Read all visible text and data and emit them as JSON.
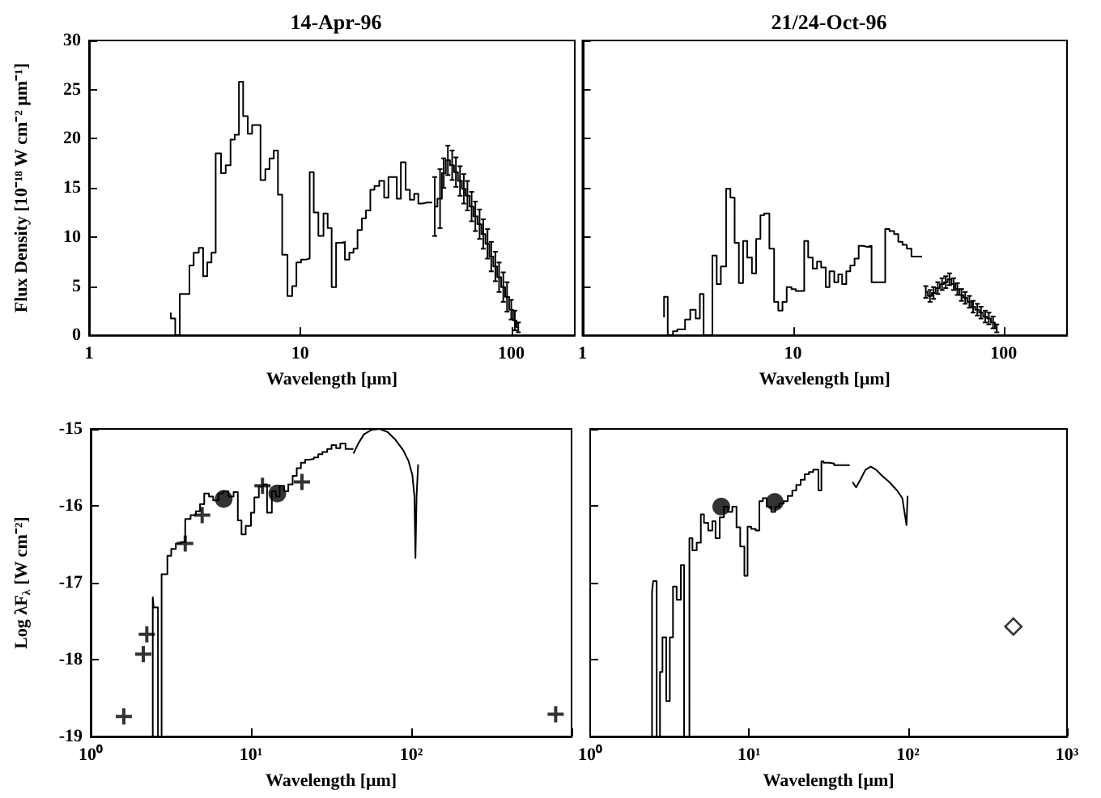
{
  "chart_data": [
    {
      "type": "step",
      "title": "14-Apr-96",
      "xlabel": "Wavelength [μm]",
      "ylabel": "Flux Density [10⁻¹⁸ W cm⁻² μm⁻¹]",
      "log": "x",
      "xlim": [
        1,
        200
      ],
      "xticks": [
        1,
        10,
        100
      ],
      "ylim": [
        0,
        30
      ],
      "yticks": [
        0,
        5,
        10,
        15,
        20,
        25,
        30
      ],
      "series": [
        {
          "color": "#000000",
          "x": [
            2.44,
            2.56,
            2.69,
            2.99,
            3.13,
            3.31,
            3.47,
            3.63,
            3.8,
            3.98,
            4.22,
            4.44,
            4.68,
            4.9,
            5.13,
            5.37,
            5.65,
            5.92,
            6.49,
            6.84,
            7.16,
            7.5,
            7.85,
            8.22,
            8.71,
            9.17,
            9.6,
            10.1,
            10.6,
            11.1,
            11.6,
            12.2,
            12.9,
            13.5,
            14.1,
            14.8,
            15.6,
            16.3,
            17.1,
            17.9,
            18.7,
            19.6,
            20.5,
            21.5,
            22.5,
            23.7,
            25,
            26.2,
            28.7,
            30,
            31.6,
            33.1,
            34.7,
            36.3,
            38,
            39.8,
            42.2
          ],
          "values": [
            2.3,
            1.7,
            0,
            4.2,
            7.1,
            8.4,
            8.9,
            6,
            7.4,
            8.4,
            18.5,
            16.5,
            17.3,
            19.9,
            20.4,
            25.8,
            22.3,
            20.5,
            21.4,
            15.8,
            16.9,
            18,
            18.8,
            14.3,
            8.2,
            4,
            5,
            7.4,
            7.7,
            7.8,
            16.6,
            12.5,
            10.1,
            12.4,
            10.9,
            4.9,
            9.4,
            9.5,
            7.7,
            8.4,
            8.8,
            10.7,
            11.9,
            12.7,
            14.8,
            15.2,
            15.7,
            14,
            16.1,
            13.9,
            17.6,
            14.8,
            13.8,
            14.4,
            13.4,
            13.5,
            13.5
          ]
        },
        {
          "color": "#000000",
          "x": [
            43.4,
            46,
            47.9,
            50.1,
            52.5,
            54.7,
            57.2,
            59.6,
            62,
            64.9,
            67.6,
            70.8,
            73.7,
            77.2,
            80.4,
            84.1,
            87.6,
            91.7,
            95.5,
            100,
            104,
            108
          ],
          "values": [
            13.1,
            13.9,
            16.5,
            17.8,
            17.3,
            16.6,
            15.7,
            14.9,
            14.2,
            13.1,
            12.1,
            11.3,
            10.3,
            9.3,
            8,
            7,
            5.9,
            4.9,
            3.9,
            2.6,
            1.5,
            0.8
          ],
          "errors": [
            3,
            3,
            1.5,
            1.5,
            1.5,
            1.5,
            1.5,
            1.5,
            1.5,
            1.5,
            1.5,
            1.5,
            1.5,
            1.5,
            1.5,
            1.5,
            1.5,
            1.5,
            1.5,
            1,
            1,
            0.5
          ]
        }
      ]
    },
    {
      "type": "step",
      "title": "21/24-Oct-96",
      "xlabel": "Wavelength [μm]",
      "log": "x",
      "xlim": [
        1,
        200
      ],
      "xticks": [
        1,
        10,
        100
      ],
      "ylim": [
        0,
        30
      ],
      "yticks": [
        0,
        5,
        10,
        15,
        20,
        25,
        30
      ],
      "tick_labels": "x",
      "series": [
        {
          "color": "#000000",
          "x": [
            2.44,
            2.54,
            2.69,
            2.82,
            3.07,
            3.25,
            3.45,
            3.61,
            3.76,
            4.14,
            4.34,
            4.54,
            4.81,
            5.04,
            5.28,
            5.53,
            5.79,
            6.06,
            6.38,
            6.68,
            7,
            7.29,
            7.72,
            8.13,
            8.51,
            8.91,
            9.33,
            9.83,
            10.3,
            11.3,
            11.8,
            12.4,
            13,
            13.6,
            14.3,
            14.9,
            15.7,
            16.4,
            17.1,
            17.9,
            18.7,
            19.6,
            20.5,
            21.5,
            22.5,
            23.6,
            27.4,
            28.7,
            30.2,
            31.6,
            33.1,
            34.7,
            36.5,
            38.7,
            41
          ],
          "values": [
            1.8,
            3.9,
            0,
            0.4,
            0.6,
            1.6,
            2.6,
            1.7,
            4.2,
            0,
            8.1,
            5.2,
            7,
            14.9,
            14,
            9.4,
            5.3,
            9.6,
            7.9,
            6.3,
            9.8,
            12.2,
            12.4,
            8.8,
            3.4,
            2.5,
            3.4,
            4.9,
            4.7,
            4.5,
            9.6,
            7.9,
            6.8,
            7.5,
            6.9,
            4.9,
            6.5,
            5.4,
            6.2,
            5.2,
            6.5,
            7.1,
            7.8,
            9.1,
            9,
            9.1,
            5.4,
            10.8,
            10.6,
            10.3,
            9.5,
            9.2,
            8.8,
            8,
            8
          ]
        },
        {
          "color": "#000000",
          "x": [
            42.7,
            44.7,
            46.5,
            48.7,
            51,
            53.1,
            55.3,
            57.9,
            60.3,
            63.1,
            65.7,
            68.8,
            71.6,
            75,
            78.1,
            81.8,
            85.1,
            89.1,
            92.8
          ],
          "values": [
            4.4,
            4,
            4.3,
            4.8,
            5.2,
            5.4,
            5.7,
            5.2,
            4.7,
            4.1,
            3.8,
            3.4,
            2.9,
            2.6,
            2.3,
            1.9,
            1.7,
            1.3,
            0.7
          ],
          "errors": [
            0.6,
            0.6,
            0.6,
            0.6,
            0.6,
            0.6,
            0.6,
            0.6,
            0.6,
            0.6,
            0.6,
            0.6,
            0.6,
            0.6,
            0.6,
            0.6,
            0.6,
            0.6,
            0.4
          ]
        }
      ]
    },
    {
      "type": "step",
      "xlabel": "Wavelength [μm]",
      "ylabel": "Log λF$_{λ}$ [W cm⁻²]",
      "log": "x",
      "xlim": [
        1,
        1000
      ],
      "xticks": [
        {
          "value": 1,
          "label": "10⁰"
        },
        {
          "value": 10,
          "label": "10¹"
        },
        {
          "value": 100,
          "label": "10²"
        },
        {
          "value": 1000,
          "label": null
        }
      ],
      "ylim": [
        -19,
        -15
      ],
      "yticks": [
        -19,
        -18,
        -17,
        -16,
        -15
      ],
      "series": [
        {
          "color": "#000000",
          "x": [
            2.44,
            2.47,
            2.63,
            2.77,
            3.01,
            3.18,
            3.4,
            3.66,
            3.89,
            4.2,
            4.53,
            4.81,
            5.11,
            5.47,
            5.81,
            6.26,
            6.7,
            7.23,
            7.79,
            8.28,
            8.73,
            9.27,
            10,
            10.5,
            11.2,
            11.9,
            12.6,
            13.5,
            14.3,
            15.1,
            16.1,
            17.1,
            18.2,
            19.3,
            20.5,
            21.8,
            23.1,
            24.7,
            26.3,
            27.9,
            29.9,
            31.8,
            34,
            36.1,
            38.9,
            42,
            43.6
          ],
          "values": [
            -19,
            -17.19,
            -17.32,
            -19,
            -16.89,
            -16.65,
            -16.56,
            -16.49,
            -16.47,
            -16.17,
            -16.12,
            -16.07,
            -15.98,
            -15.84,
            -15.88,
            -15.93,
            -15.84,
            -15.81,
            -15.88,
            -15.82,
            -16.19,
            -16.37,
            -16.26,
            -16.09,
            -15.89,
            -15.75,
            -15.72,
            -16.09,
            -15.81,
            -15.88,
            -15.74,
            -15.81,
            -15.72,
            -15.61,
            -15.51,
            -15.44,
            -15.4,
            -15.39,
            -15.37,
            -15.33,
            -15.3,
            -15.26,
            -15.21,
            -15.25,
            -15.19,
            -15.26,
            -15.26
          ]
        },
        {
          "type": "line",
          "color": "#000000",
          "x": [
            43.6,
            47,
            50.7,
            56.8,
            63.6,
            71.2,
            79.7,
            89.3,
            96.3,
            101.6,
            104.7,
            106.2,
            107.9,
            110.4
          ],
          "values": [
            -15.32,
            -15.18,
            -15.07,
            -15.01,
            -15,
            -15.04,
            -15.14,
            -15.28,
            -15.42,
            -15.6,
            -15.88,
            -16.68,
            -15.88,
            -15.46
          ]
        },
        {
          "type": "scatter",
          "marker": "cross",
          "color": "#000000",
          "x": [
            1.61,
            2.13,
            2.24,
            3.89,
            4.96,
            11.8,
            20.8,
            796
          ],
          "values": [
            -18.74,
            -17.93,
            -17.67,
            -16.49,
            -16.12,
            -15.74,
            -15.69,
            -18.71
          ]
        },
        {
          "type": "scatter",
          "marker": "circle",
          "color": "#000000",
          "x": [
            6.76,
            14.6
          ],
          "values": [
            -15.91,
            -15.84
          ]
        }
      ]
    },
    {
      "type": "step",
      "xlabel": "Wavelength [μm]",
      "log": "x",
      "xlim": [
        1,
        1000
      ],
      "xticks": [
        {
          "value": 1,
          "label": "10⁰"
        },
        {
          "value": 10,
          "label": "10¹"
        },
        {
          "value": 100,
          "label": "10²"
        },
        {
          "value": 1000,
          "label": "10³"
        }
      ],
      "ylim": [
        -19,
        -15
      ],
      "yticks": [
        -19,
        -18,
        -17,
        -16,
        -15
      ],
      "tick_labels": "x",
      "series": [
        {
          "color": "#000000",
          "x": [
            2.45,
            2.49,
            2.62,
            2.75,
            2.85,
            3.01,
            3.17,
            3.32,
            3.5,
            3.72,
            3.9,
            4.21,
            4.4,
            4.68,
            4.97,
            5.2,
            5.53,
            5.87,
            6.15,
            6.53,
            6.94,
            7.38,
            7.84,
            8.33,
            8.79,
            9.34,
            9.78,
            10.3,
            11,
            11.6,
            12.2,
            12.9,
            13.8,
            14.6,
            15.5,
            16.5,
            17.5,
            18.7,
            19.8,
            21.1,
            22.4,
            23.8,
            25.3,
            27.3,
            28.5,
            29.4,
            31.8,
            34.3,
            37,
            43
          ],
          "values": [
            -19,
            -17.12,
            -16.98,
            -19,
            -18.16,
            -17.71,
            -18.54,
            -17.71,
            -17.05,
            -17.22,
            -16.77,
            -19,
            -16.42,
            -16.58,
            -16.48,
            -16.11,
            -16.22,
            -16.32,
            -16.2,
            -16.42,
            -16.15,
            -16.01,
            -16.08,
            -16.01,
            -16.28,
            -16.53,
            -16.91,
            -16.27,
            -16.3,
            -16.32,
            -15.94,
            -15.9,
            -16.01,
            -16.08,
            -16.01,
            -15.97,
            -15.94,
            -15.87,
            -15.8,
            -15.73,
            -15.66,
            -15.59,
            -15.56,
            -15.53,
            -15.8,
            -15.42,
            -15.44,
            -15.45,
            -15.47,
            -15.47
          ]
        },
        {
          "type": "line",
          "color": "#000000",
          "x": [
            44.7,
            47.1,
            50.1,
            54,
            58.3,
            62.9,
            67.9,
            76.1,
            85.3,
            92,
            97.8,
            99.3
          ],
          "values": [
            -15.69,
            -15.76,
            -15.66,
            -15.53,
            -15.49,
            -15.53,
            -15.6,
            -15.69,
            -15.8,
            -15.9,
            -16.25,
            -15.87
          ]
        },
        {
          "type": "scatter",
          "marker": "circle",
          "color": "#000000",
          "x": [
            6.68,
            14.5
          ],
          "values": [
            -16.01,
            -15.95
          ]
        },
        {
          "type": "scatter",
          "marker": "diamond",
          "color": "#000000",
          "x": [
            460
          ],
          "values": [
            -17.57
          ]
        }
      ]
    }
  ]
}
